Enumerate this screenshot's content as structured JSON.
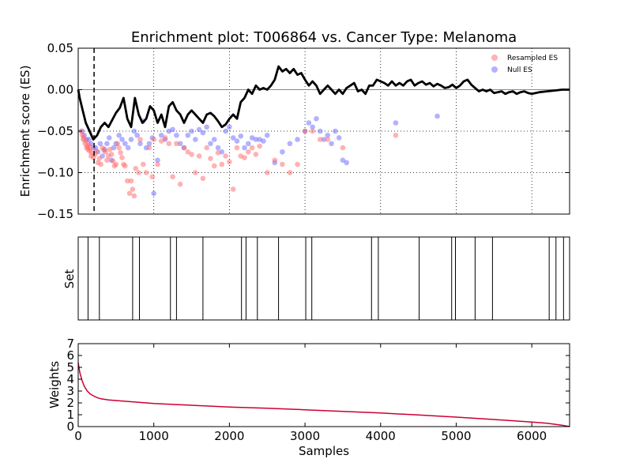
{
  "title": "Enrichment plot: T006864 vs. Cancer Type: Melanoma",
  "colors": {
    "resampled": "#ff6666",
    "null": "#6666ff",
    "es_line": "#000000",
    "weights_line": "#cc0033"
  },
  "chart_data": [
    {
      "type": "line",
      "panel": "enrichment",
      "ylabel": "Enrichment score (ES)",
      "xlim": [
        0,
        6500
      ],
      "ylim": [
        -0.15,
        0.05
      ],
      "yticks": [
        "0.05",
        "0.00",
        "−0.05",
        "−0.10",
        "−0.15"
      ],
      "ytick_values": [
        0.05,
        0.0,
        -0.05,
        -0.1,
        -0.15
      ],
      "grid": true,
      "legend": {
        "placement": "top-right",
        "entries": [
          "Resampled ES",
          "Null ES"
        ]
      },
      "leading_edge_x": 210,
      "es_curve": {
        "x": [
          0,
          20,
          60,
          100,
          150,
          200,
          250,
          300,
          350,
          400,
          500,
          550,
          600,
          650,
          700,
          750,
          800,
          850,
          900,
          950,
          1000,
          1050,
          1100,
          1150,
          1200,
          1250,
          1300,
          1350,
          1400,
          1450,
          1500,
          1550,
          1600,
          1650,
          1700,
          1750,
          1800,
          1850,
          1900,
          1950,
          2000,
          2050,
          2100,
          2150,
          2200,
          2250,
          2300,
          2350,
          2400,
          2450,
          2500,
          2550,
          2600,
          2650,
          2700,
          2750,
          2800,
          2850,
          2900,
          2950,
          3000,
          3050,
          3100,
          3150,
          3200,
          3250,
          3300,
          3350,
          3400,
          3450,
          3500,
          3550,
          3600,
          3650,
          3700,
          3750,
          3800,
          3850,
          3900,
          3950,
          4000,
          4050,
          4100,
          4150,
          4200,
          4250,
          4300,
          4350,
          4400,
          4450,
          4500,
          4550,
          4600,
          4650,
          4700,
          4750,
          4800,
          4850,
          4900,
          4950,
          5000,
          5050,
          5100,
          5150,
          5200,
          5250,
          5300,
          5350,
          5400,
          5450,
          5500,
          5550,
          5600,
          5650,
          5700,
          5750,
          5800,
          5850,
          5900,
          5950,
          6000,
          6100,
          6200,
          6300,
          6400,
          6500
        ],
        "y": [
          0.0,
          -0.01,
          -0.025,
          -0.04,
          -0.05,
          -0.06,
          -0.055,
          -0.045,
          -0.04,
          -0.045,
          -0.028,
          -0.022,
          -0.01,
          -0.035,
          -0.045,
          -0.01,
          -0.03,
          -0.04,
          -0.035,
          -0.02,
          -0.025,
          -0.04,
          -0.03,
          -0.045,
          -0.02,
          -0.015,
          -0.025,
          -0.03,
          -0.04,
          -0.03,
          -0.025,
          -0.03,
          -0.035,
          -0.04,
          -0.03,
          -0.028,
          -0.032,
          -0.038,
          -0.045,
          -0.042,
          -0.035,
          -0.03,
          -0.035,
          -0.015,
          -0.01,
          0.0,
          -0.005,
          0.005,
          0.0,
          0.002,
          0.0,
          0.005,
          0.012,
          0.028,
          0.022,
          0.025,
          0.02,
          0.025,
          0.018,
          0.02,
          0.012,
          0.005,
          0.01,
          0.005,
          -0.005,
          0.0,
          0.005,
          0.0,
          -0.005,
          0.0,
          -0.005,
          0.002,
          0.005,
          0.008,
          -0.002,
          0.0,
          -0.005,
          0.005,
          0.005,
          0.012,
          0.01,
          0.008,
          0.005,
          0.01,
          0.005,
          0.008,
          0.005,
          0.01,
          0.012,
          0.005,
          0.008,
          0.01,
          0.006,
          0.008,
          0.004,
          0.007,
          0.005,
          0.002,
          0.003,
          0.006,
          0.002,
          0.005,
          0.01,
          0.012,
          0.006,
          0.002,
          -0.002,
          0.0,
          -0.002,
          0.0,
          -0.004,
          -0.003,
          -0.002,
          -0.005,
          -0.003,
          -0.002,
          -0.005,
          -0.003,
          -0.002,
          -0.004,
          -0.005,
          -0.003,
          -0.002,
          -0.001,
          0.0,
          0.0
        ]
      },
      "resampled_es": {
        "x": [
          40,
          55,
          65,
          75,
          90,
          100,
          110,
          120,
          130,
          140,
          150,
          160,
          170,
          180,
          200,
          220,
          240,
          260,
          280,
          300,
          320,
          340,
          360,
          380,
          400,
          420,
          440,
          460,
          480,
          500,
          520,
          540,
          560,
          580,
          600,
          620,
          650,
          680,
          700,
          720,
          740,
          760,
          800,
          820,
          860,
          900,
          940,
          980,
          1000,
          1050,
          1100,
          1150,
          1200,
          1250,
          1300,
          1350,
          1400,
          1450,
          1500,
          1550,
          1600,
          1650,
          1700,
          1750,
          1800,
          1850,
          1900,
          1950,
          2000,
          2050,
          2100,
          2150,
          2200,
          2250,
          2300,
          2350,
          2400,
          2500,
          2600,
          2700,
          2800,
          2900,
          3000,
          3100,
          3200,
          3300,
          3500,
          4200
        ],
        "y": [
          -0.05,
          -0.055,
          -0.06,
          -0.058,
          -0.065,
          -0.062,
          -0.07,
          -0.068,
          -0.072,
          -0.066,
          -0.074,
          -0.07,
          -0.08,
          -0.076,
          -0.082,
          -0.078,
          -0.074,
          -0.088,
          -0.083,
          -0.09,
          -0.07,
          -0.073,
          -0.075,
          -0.085,
          -0.08,
          -0.072,
          -0.078,
          -0.086,
          -0.092,
          -0.09,
          -0.065,
          -0.07,
          -0.076,
          -0.082,
          -0.09,
          -0.092,
          -0.11,
          -0.125,
          -0.11,
          -0.12,
          -0.128,
          -0.095,
          -0.1,
          -0.06,
          -0.09,
          -0.1,
          -0.07,
          -0.105,
          -0.06,
          -0.09,
          -0.062,
          -0.058,
          -0.065,
          -0.105,
          -0.065,
          -0.114,
          -0.07,
          -0.075,
          -0.078,
          -0.1,
          -0.08,
          -0.107,
          -0.07,
          -0.083,
          -0.092,
          -0.076,
          -0.09,
          -0.08,
          -0.087,
          -0.12,
          -0.07,
          -0.08,
          -0.082,
          -0.075,
          -0.07,
          -0.078,
          -0.068,
          -0.1,
          -0.085,
          -0.09,
          -0.1,
          -0.09,
          -0.05,
          -0.05,
          -0.06,
          -0.06,
          -0.07,
          -0.055
        ]
      },
      "null_es": {
        "x": [
          50,
          80,
          110,
          140,
          170,
          200,
          230,
          260,
          290,
          320,
          350,
          380,
          410,
          440,
          470,
          500,
          540,
          580,
          620,
          660,
          700,
          740,
          780,
          820,
          860,
          900,
          940,
          980,
          1000,
          1050,
          1100,
          1150,
          1200,
          1250,
          1300,
          1350,
          1400,
          1450,
          1500,
          1550,
          1600,
          1650,
          1700,
          1750,
          1800,
          1850,
          1900,
          1950,
          2000,
          2050,
          2100,
          2150,
          2200,
          2250,
          2300,
          2350,
          2400,
          2450,
          2500,
          2600,
          2700,
          2800,
          2900,
          3000,
          3050,
          3100,
          3150,
          3200,
          3250,
          3300,
          3350,
          3400,
          3450,
          3500,
          3550,
          4200,
          4750
        ],
        "y": [
          -0.05,
          -0.055,
          -0.06,
          -0.06,
          -0.065,
          -0.07,
          -0.07,
          -0.075,
          -0.065,
          -0.08,
          -0.072,
          -0.065,
          -0.058,
          -0.085,
          -0.07,
          -0.065,
          -0.055,
          -0.06,
          -0.065,
          -0.07,
          -0.06,
          -0.05,
          -0.055,
          -0.065,
          -0.038,
          -0.07,
          -0.065,
          -0.058,
          -0.125,
          -0.085,
          -0.055,
          -0.06,
          -0.05,
          -0.048,
          -0.055,
          -0.065,
          -0.07,
          -0.055,
          -0.05,
          -0.06,
          -0.048,
          -0.052,
          -0.045,
          -0.065,
          -0.06,
          -0.07,
          -0.075,
          -0.05,
          -0.045,
          -0.058,
          -0.062,
          -0.056,
          -0.07,
          -0.065,
          -0.058,
          -0.06,
          -0.06,
          -0.062,
          -0.055,
          -0.088,
          -0.075,
          -0.065,
          -0.06,
          -0.05,
          -0.04,
          -0.045,
          -0.035,
          -0.05,
          -0.06,
          -0.055,
          -0.065,
          -0.05,
          -0.058,
          -0.085,
          -0.088,
          -0.04,
          -0.032
        ]
      }
    },
    {
      "type": "line",
      "panel": "set",
      "ylabel": "Set",
      "xlim": [
        0,
        6500
      ],
      "hits": [
        130,
        280,
        720,
        810,
        1220,
        1300,
        1650,
        2160,
        2220,
        2370,
        2650,
        3010,
        3090,
        3880,
        3970,
        4510,
        4940,
        4990,
        5250,
        5480,
        6230,
        6320,
        6420
      ]
    },
    {
      "type": "line",
      "panel": "weights",
      "ylabel": "Weights",
      "xlabel": "Samples",
      "xlim": [
        0,
        6500
      ],
      "ylim": [
        0,
        7
      ],
      "yticks": [
        "7",
        "6",
        "5",
        "4",
        "3",
        "2",
        "1",
        "0"
      ],
      "ytick_values": [
        7,
        6,
        5,
        4,
        3,
        2,
        1,
        0
      ],
      "xticks": [
        "0",
        "1000",
        "2000",
        "3000",
        "4000",
        "5000",
        "6000"
      ],
      "xtick_values": [
        0,
        1000,
        2000,
        3000,
        4000,
        5000,
        6000
      ],
      "x": [
        0,
        20,
        50,
        80,
        120,
        160,
        200,
        250,
        300,
        400,
        600,
        800,
        1000,
        1500,
        2000,
        2500,
        3000,
        3500,
        4000,
        4500,
        5000,
        5500,
        6000,
        6200,
        6400,
        6500
      ],
      "y": [
        5.4,
        4.6,
        3.9,
        3.4,
        3.0,
        2.75,
        2.6,
        2.45,
        2.35,
        2.25,
        2.15,
        2.05,
        1.95,
        1.8,
        1.65,
        1.55,
        1.42,
        1.28,
        1.15,
        0.98,
        0.8,
        0.6,
        0.38,
        0.28,
        0.12,
        0.0
      ]
    }
  ]
}
